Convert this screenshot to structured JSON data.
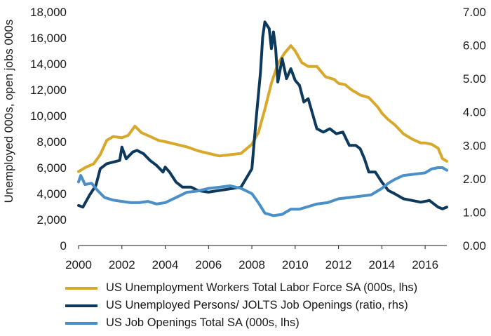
{
  "chart_data": {
    "type": "line",
    "title": "",
    "ylabel": "Unemployed 000s, open jobs 000s",
    "xlim": [
      2000,
      2017
    ],
    "ylim_left": [
      0,
      18000
    ],
    "ylim_right": [
      0,
      7
    ],
    "x_ticks": [
      "2000",
      "2002",
      "2004",
      "2006",
      "2008",
      "2010",
      "2012",
      "2014",
      "2016"
    ],
    "y_ticks_left": [
      "0",
      "2,000",
      "4,000",
      "6,000",
      "8,000",
      "10,000",
      "12,000",
      "14,000",
      "16,000",
      "18,000"
    ],
    "y_ticks_right": [
      "0.00",
      "1.00",
      "2.00",
      "3.00",
      "4.00",
      "5.00",
      "6.00",
      "7.00"
    ],
    "grid": false,
    "legend_position": "bottom",
    "series": [
      {
        "name": "US Unemployment Workers Total Labor Force SA (000s, lhs)",
        "axis": "left",
        "color": "#d8a82a",
        "points": [
          [
            2000.0,
            5700
          ],
          [
            2000.3,
            6000
          ],
          [
            2000.7,
            6300
          ],
          [
            2001.0,
            7000
          ],
          [
            2001.3,
            8100
          ],
          [
            2001.6,
            8400
          ],
          [
            2002.0,
            8300
          ],
          [
            2002.3,
            8500
          ],
          [
            2002.6,
            9200
          ],
          [
            2002.9,
            8700
          ],
          [
            2003.3,
            8400
          ],
          [
            2003.7,
            8100
          ],
          [
            2004.0,
            8000
          ],
          [
            2004.5,
            7800
          ],
          [
            2005.0,
            7600
          ],
          [
            2005.5,
            7300
          ],
          [
            2006.0,
            7100
          ],
          [
            2006.5,
            6900
          ],
          [
            2007.0,
            7000
          ],
          [
            2007.5,
            7100
          ],
          [
            2008.0,
            7800
          ],
          [
            2008.3,
            8700
          ],
          [
            2008.6,
            10500
          ],
          [
            2008.9,
            12500
          ],
          [
            2009.2,
            14000
          ],
          [
            2009.5,
            14800
          ],
          [
            2009.8,
            15400
          ],
          [
            2010.0,
            15000
          ],
          [
            2010.3,
            14100
          ],
          [
            2010.6,
            13800
          ],
          [
            2011.0,
            13800
          ],
          [
            2011.4,
            13000
          ],
          [
            2011.8,
            12800
          ],
          [
            2012.0,
            12500
          ],
          [
            2012.3,
            12400
          ],
          [
            2012.6,
            12000
          ],
          [
            2013.0,
            11600
          ],
          [
            2013.4,
            11400
          ],
          [
            2013.8,
            10700
          ],
          [
            2014.0,
            10200
          ],
          [
            2014.3,
            9700
          ],
          [
            2014.6,
            9300
          ],
          [
            2015.0,
            8600
          ],
          [
            2015.4,
            8200
          ],
          [
            2015.8,
            7900
          ],
          [
            2016.0,
            7900
          ],
          [
            2016.3,
            7800
          ],
          [
            2016.6,
            7500
          ],
          [
            2016.8,
            6700
          ],
          [
            2017.0,
            6500
          ]
        ]
      },
      {
        "name": "US Unemployed Persons/ JOLTS Job Openings (ratio, rhs)",
        "axis": "right",
        "color": "#0d3a5c",
        "points": [
          [
            2000.0,
            1.2
          ],
          [
            2000.2,
            1.15
          ],
          [
            2000.5,
            1.5
          ],
          [
            2000.8,
            1.8
          ],
          [
            2001.0,
            2.3
          ],
          [
            2001.3,
            2.45
          ],
          [
            2001.6,
            2.5
          ],
          [
            2001.9,
            2.55
          ],
          [
            2002.0,
            2.95
          ],
          [
            2002.2,
            2.6
          ],
          [
            2002.5,
            2.8
          ],
          [
            2002.7,
            2.85
          ],
          [
            2003.0,
            2.75
          ],
          [
            2003.3,
            2.55
          ],
          [
            2003.6,
            2.4
          ],
          [
            2003.9,
            2.2
          ],
          [
            2004.0,
            2.35
          ],
          [
            2004.2,
            2.2
          ],
          [
            2004.5,
            1.9
          ],
          [
            2004.8,
            1.75
          ],
          [
            2005.2,
            1.75
          ],
          [
            2005.5,
            1.65
          ],
          [
            2006.0,
            1.6
          ],
          [
            2006.5,
            1.65
          ],
          [
            2007.0,
            1.7
          ],
          [
            2007.5,
            1.75
          ],
          [
            2008.0,
            2.3
          ],
          [
            2008.2,
            3.8
          ],
          [
            2008.4,
            5.2
          ],
          [
            2008.5,
            6.25
          ],
          [
            2008.6,
            6.7
          ],
          [
            2008.8,
            6.5
          ],
          [
            2008.9,
            5.9
          ],
          [
            2009.0,
            6.4
          ],
          [
            2009.1,
            5.9
          ],
          [
            2009.2,
            4.9
          ],
          [
            2009.4,
            5.6
          ],
          [
            2009.6,
            5.0
          ],
          [
            2009.8,
            5.3
          ],
          [
            2010.0,
            4.95
          ],
          [
            2010.2,
            4.8
          ],
          [
            2010.4,
            4.3
          ],
          [
            2010.6,
            4.4
          ],
          [
            2011.0,
            3.5
          ],
          [
            2011.3,
            3.4
          ],
          [
            2011.6,
            3.5
          ],
          [
            2011.9,
            3.35
          ],
          [
            2012.2,
            3.4
          ],
          [
            2012.5,
            3.0
          ],
          [
            2012.8,
            3.0
          ],
          [
            2013.0,
            2.9
          ],
          [
            2013.2,
            2.6
          ],
          [
            2013.4,
            2.2
          ],
          [
            2013.7,
            2.2
          ],
          [
            2014.0,
            1.9
          ],
          [
            2014.3,
            1.65
          ],
          [
            2014.6,
            1.55
          ],
          [
            2015.0,
            1.4
          ],
          [
            2015.4,
            1.35
          ],
          [
            2015.8,
            1.3
          ],
          [
            2016.2,
            1.35
          ],
          [
            2016.6,
            1.15
          ],
          [
            2016.8,
            1.1
          ],
          [
            2017.0,
            1.15
          ]
        ]
      },
      {
        "name": "US Job Openings Total SA (000s, lhs)",
        "axis": "left",
        "color": "#4a8fc7",
        "points": [
          [
            2000.0,
            4900
          ],
          [
            2000.1,
            5400
          ],
          [
            2000.3,
            4700
          ],
          [
            2000.6,
            4800
          ],
          [
            2000.9,
            4200
          ],
          [
            2001.2,
            3700
          ],
          [
            2001.6,
            3500
          ],
          [
            2002.0,
            3400
          ],
          [
            2002.4,
            3300
          ],
          [
            2002.8,
            3300
          ],
          [
            2003.2,
            3400
          ],
          [
            2003.6,
            3200
          ],
          [
            2004.0,
            3300
          ],
          [
            2004.5,
            3700
          ],
          [
            2005.0,
            4100
          ],
          [
            2005.5,
            4200
          ],
          [
            2006.0,
            4400
          ],
          [
            2006.5,
            4500
          ],
          [
            2007.0,
            4600
          ],
          [
            2007.5,
            4400
          ],
          [
            2008.0,
            4000
          ],
          [
            2008.3,
            3300
          ],
          [
            2008.6,
            2500
          ],
          [
            2009.0,
            2300
          ],
          [
            2009.4,
            2400
          ],
          [
            2009.8,
            2800
          ],
          [
            2010.2,
            2800
          ],
          [
            2010.6,
            3000
          ],
          [
            2011.0,
            3200
          ],
          [
            2011.5,
            3300
          ],
          [
            2012.0,
            3600
          ],
          [
            2012.5,
            3700
          ],
          [
            2013.0,
            3800
          ],
          [
            2013.5,
            3900
          ],
          [
            2014.0,
            4400
          ],
          [
            2014.3,
            4800
          ],
          [
            2014.6,
            5100
          ],
          [
            2015.0,
            5400
          ],
          [
            2015.5,
            5500
          ],
          [
            2016.0,
            5600
          ],
          [
            2016.3,
            5900
          ],
          [
            2016.6,
            6000
          ],
          [
            2016.8,
            6000
          ],
          [
            2017.0,
            5800
          ]
        ]
      }
    ]
  }
}
